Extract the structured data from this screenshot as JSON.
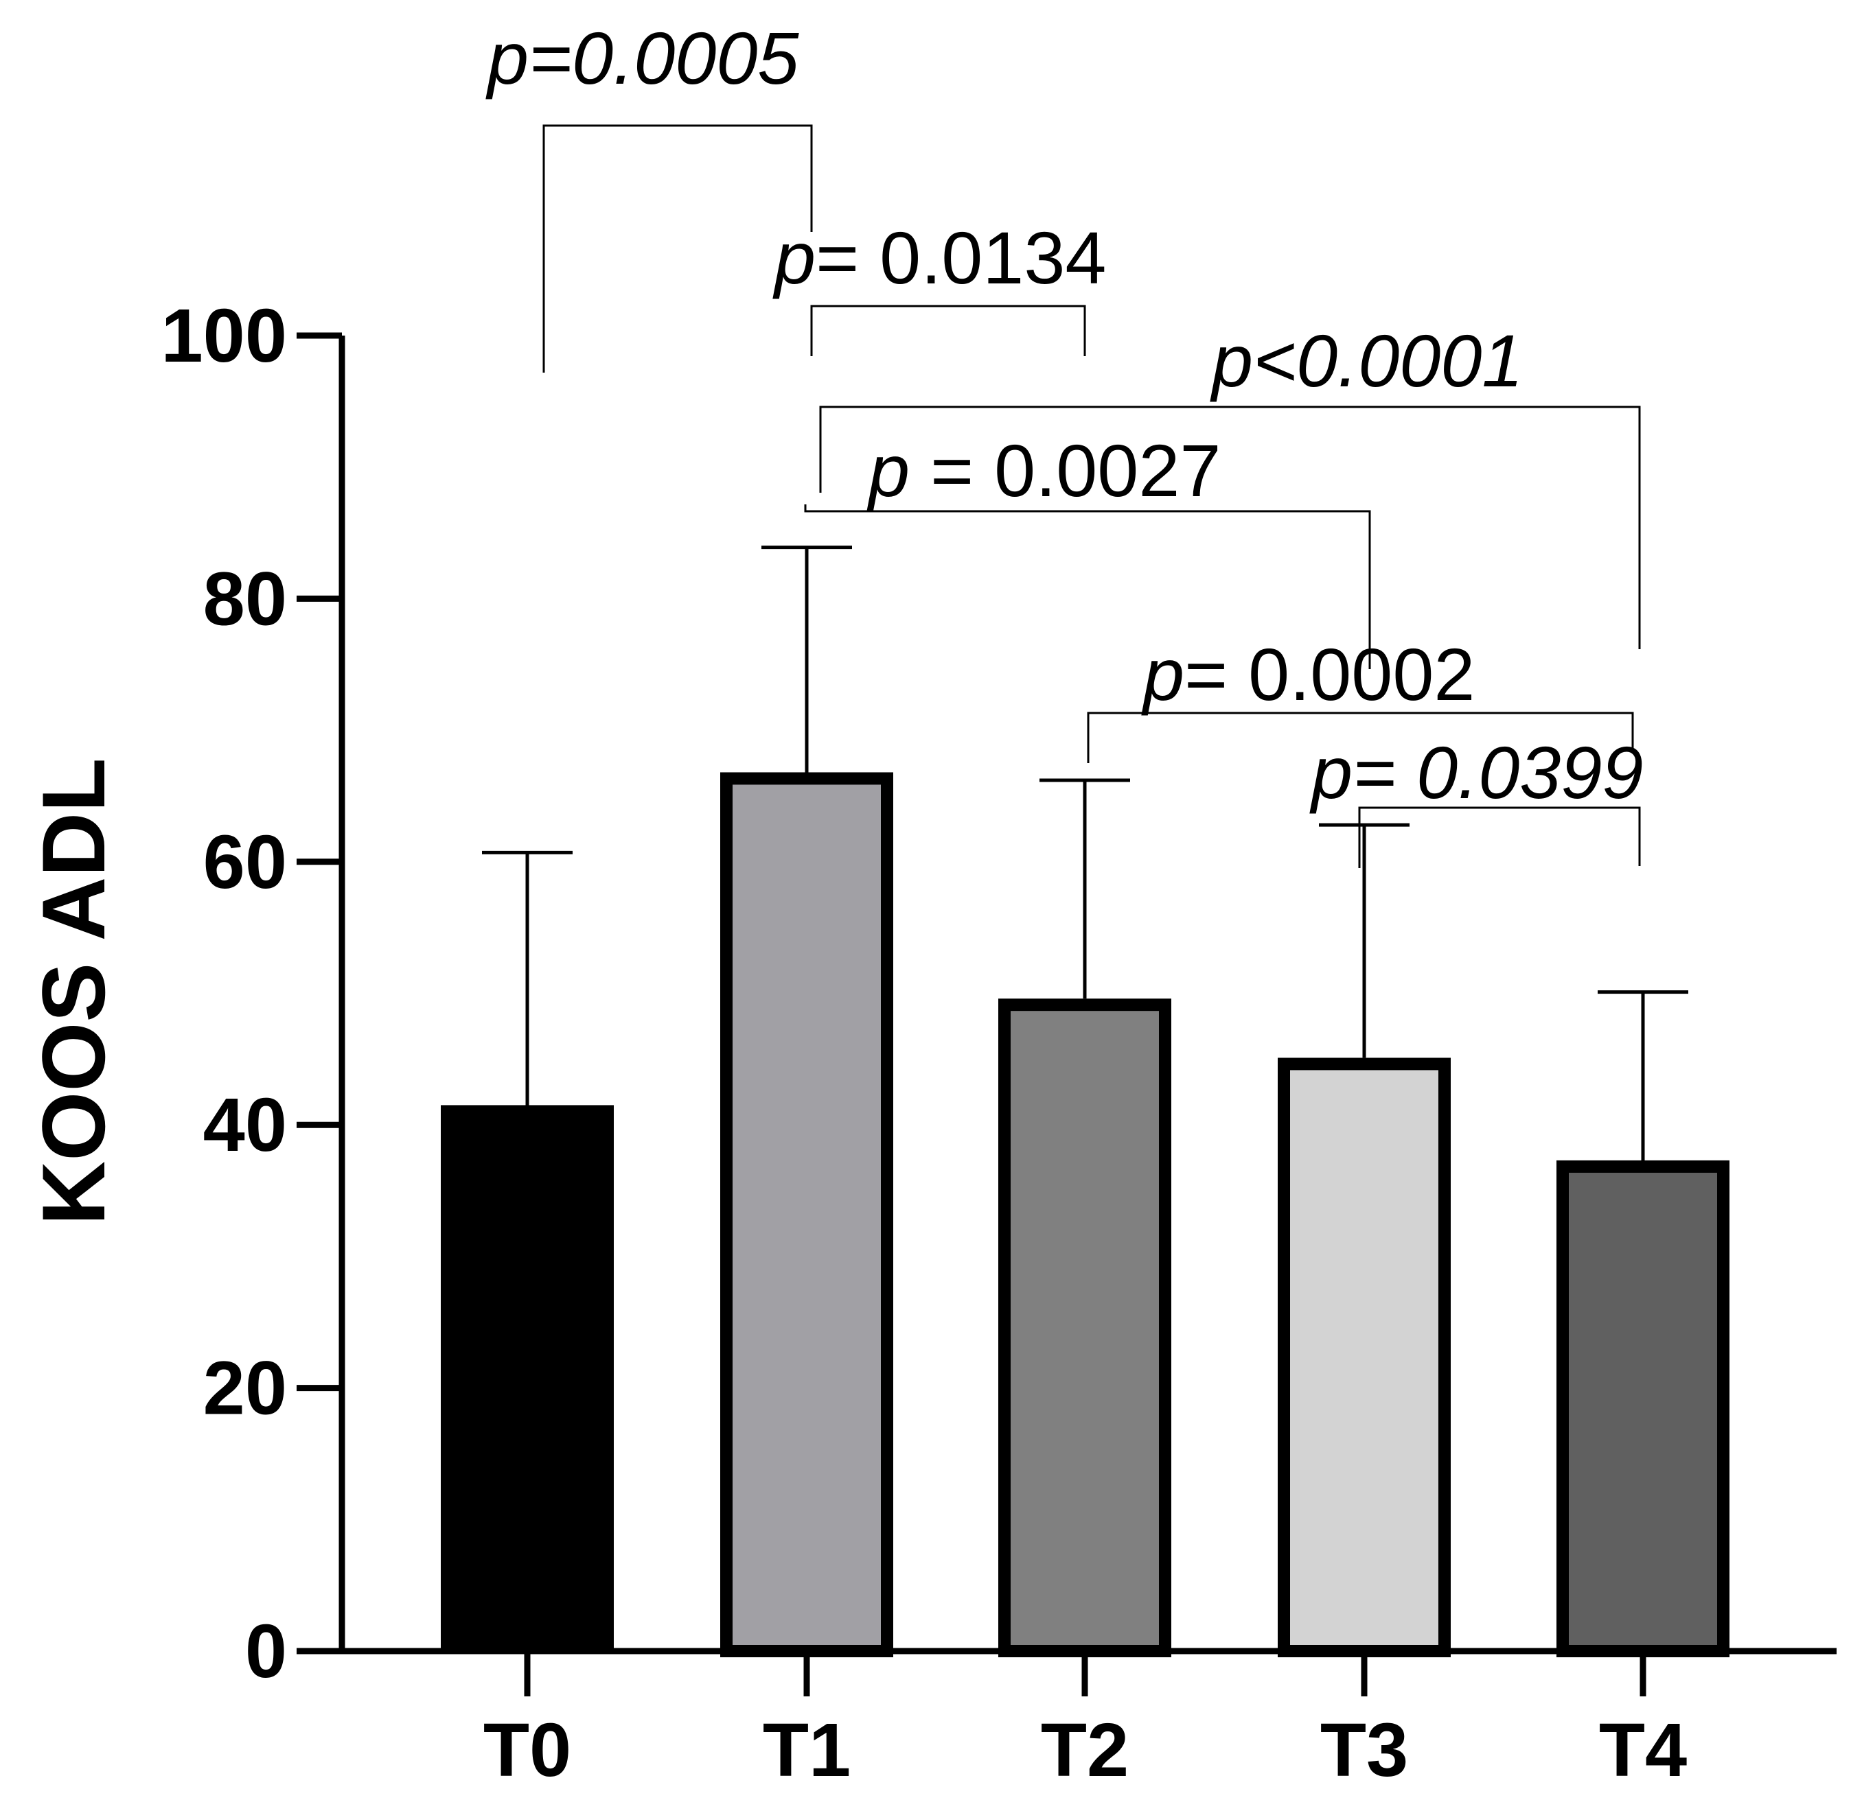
{
  "chart_data": {
    "type": "bar",
    "ylabel": "KOOS ADL",
    "xlabel": "",
    "ylim": [
      0,
      100
    ],
    "yticks": [
      0,
      20,
      40,
      60,
      80,
      100
    ],
    "categories": [
      "T0",
      "T1",
      "T2",
      "T3",
      "T4"
    ],
    "values": [
      41.5,
      66.8,
      49.6,
      45.1,
      37.3
    ],
    "error_upper": [
      60.7,
      83.9,
      66.2,
      62.8,
      50.1
    ],
    "bar_colors": [
      "#000000",
      "#a1a0a5",
      "#808080",
      "#d3d3d3",
      "#606060"
    ],
    "comparisons": [
      {
        "from": "T0",
        "to": "T1",
        "label": "p=0.0005"
      },
      {
        "from": "T1",
        "to": "T2",
        "label": "p= 0.0134"
      },
      {
        "from": "T1",
        "to": "T4",
        "label": "p<0.0001"
      },
      {
        "from": "T1",
        "to": "T3",
        "label": "p = 0.0027"
      },
      {
        "from": "T2",
        "to": "T4",
        "label": "p= 0.0002"
      },
      {
        "from": "T3",
        "to": "T4",
        "label": "p= 0.0399"
      }
    ]
  }
}
